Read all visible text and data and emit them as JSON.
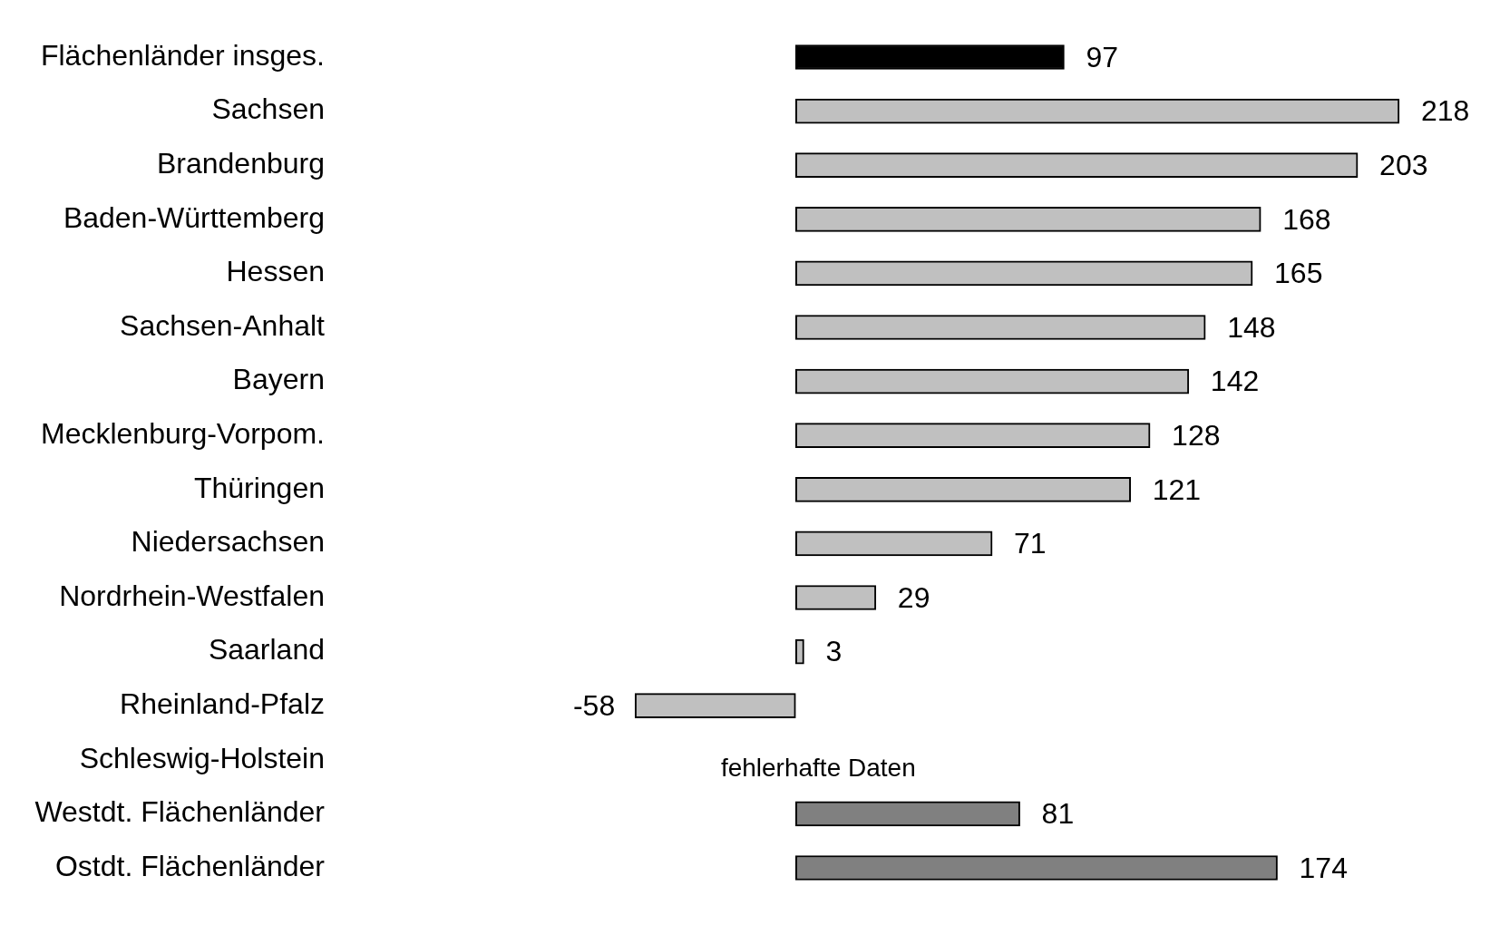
{
  "chart_data": {
    "type": "bar",
    "orientation": "horizontal",
    "data_labels": true,
    "legend": false,
    "tick_labels": "y",
    "categories": [
      "Flächenländer insges.",
      "Sachsen",
      "Brandenburg",
      "Baden-Württemberg",
      "Hessen",
      "Sachsen-Anhalt",
      "Bayern",
      "Mecklenburg-Vorpom.",
      "Thüringen",
      "Niedersachsen",
      "Nordrhein-Westfalen",
      "Saarland",
      "Rheinland-Pfalz",
      "Schleswig-Holstein",
      "Westdt. Flächenländer",
      "Ostdt. Flächenländer"
    ],
    "values": [
      97,
      218,
      203,
      168,
      165,
      148,
      142,
      128,
      121,
      71,
      29,
      3,
      -58,
      null,
      81,
      174
    ],
    "colors": [
      "#000000",
      "#c0c0c0",
      "#c0c0c0",
      "#c0c0c0",
      "#c0c0c0",
      "#c0c0c0",
      "#c0c0c0",
      "#c0c0c0",
      "#c0c0c0",
      "#c0c0c0",
      "#c0c0c0",
      "#c0c0c0",
      "#c0c0c0",
      "#c0c0c0",
      "#808080",
      "#808080"
    ],
    "annotations": [
      "fehlerhafte Daten"
    ]
  }
}
